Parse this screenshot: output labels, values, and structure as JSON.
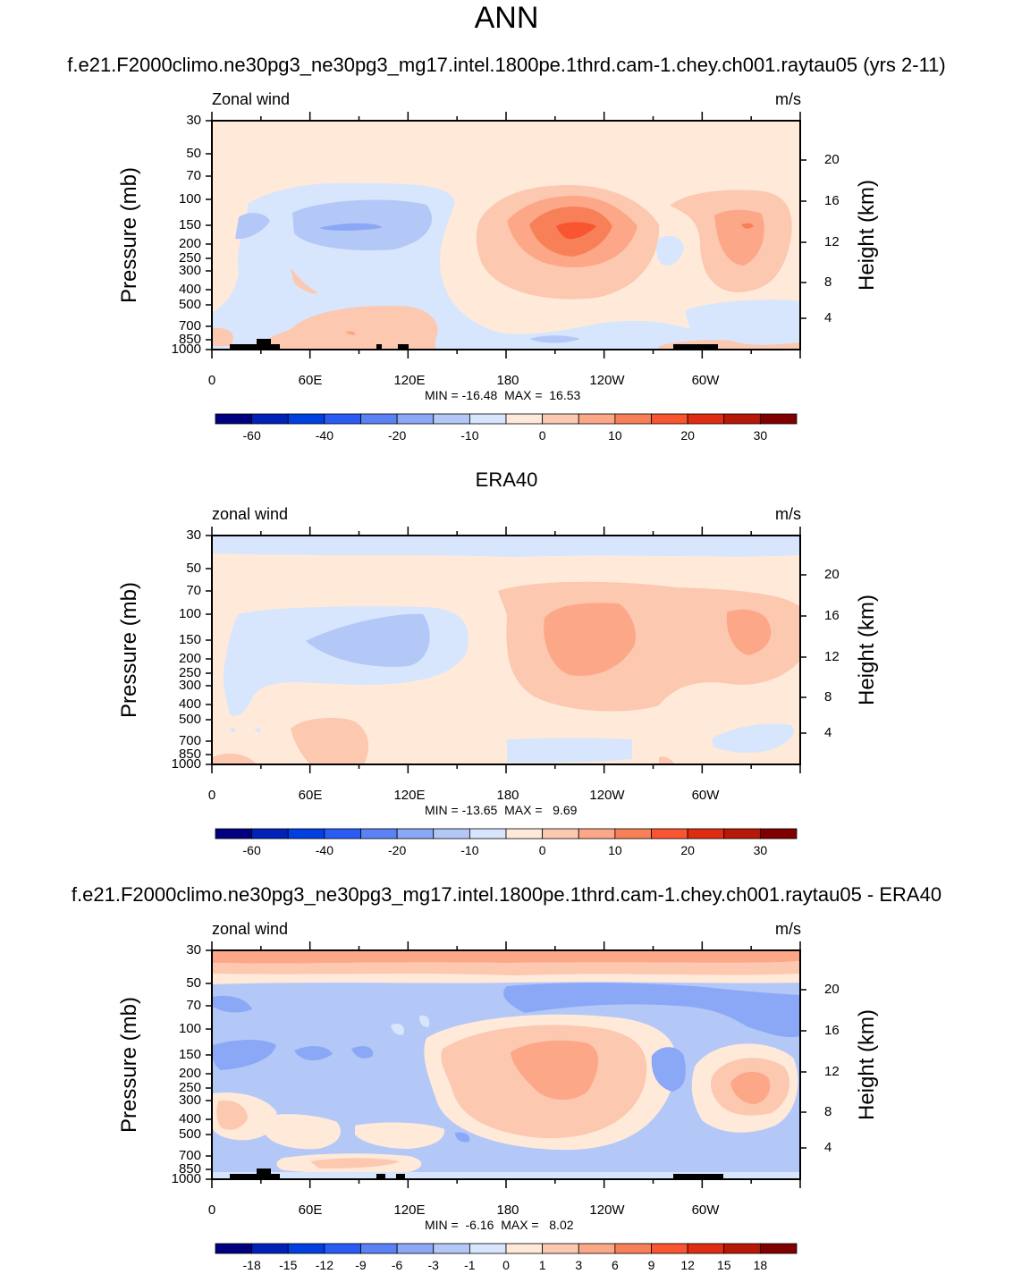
{
  "title": "ANN",
  "colors": {
    "scale": [
      "#000080",
      "#0022b8",
      "#0040e0",
      "#2a5cf5",
      "#5a82f5",
      "#8aa8f5",
      "#b4c8f8",
      "#d7e6fc",
      "#ffeada",
      "#fcc8b0",
      "#fca888",
      "#f88058",
      "#f85530",
      "#e02c10",
      "#b81808",
      "#800000"
    ],
    "land": "#000000"
  },
  "chart_data": [
    {
      "type": "heatmap",
      "title": "f.e21.F2000climo.ne30pg3_ne30pg3_mg17.intel.1800pe.1thrd.cam-1.chey.ch001.raytau05 (yrs 2-11)",
      "left_label": "Zonal wind",
      "right_label": "m/s",
      "ylabel": "Pressure (mb)",
      "ylabel_right": "Height (km)",
      "yticks": [
        "30",
        "50",
        "70",
        "100",
        "150",
        "200",
        "250",
        "300",
        "400",
        "500",
        "700",
        "850",
        "1000"
      ],
      "yticks_right": [
        "20",
        "16",
        "12",
        "8",
        "4"
      ],
      "xticks": [
        "0",
        "60E",
        "120E",
        "180",
        "120W",
        "60W"
      ],
      "min_max": "MIN = -16.48  MAX =  16.53",
      "colorbar_labels": [
        "-60",
        "-40",
        "-20",
        "-10",
        "0",
        "10",
        "20",
        "30"
      ],
      "summary": {
        "min": -16.48,
        "max": 16.53
      }
    },
    {
      "type": "heatmap",
      "title": "ERA40",
      "left_label": "zonal wind",
      "right_label": "m/s",
      "ylabel": "Pressure (mb)",
      "ylabel_right": "Height (km)",
      "yticks": [
        "30",
        "50",
        "70",
        "100",
        "150",
        "200",
        "250",
        "300",
        "400",
        "500",
        "700",
        "850",
        "1000"
      ],
      "yticks_right": [
        "20",
        "16",
        "12",
        "8",
        "4"
      ],
      "xticks": [
        "0",
        "60E",
        "120E",
        "180",
        "120W",
        "60W"
      ],
      "min_max": "MIN = -13.65  MAX =   9.69",
      "colorbar_labels": [
        "-60",
        "-40",
        "-20",
        "-10",
        "0",
        "10",
        "20",
        "30"
      ],
      "summary": {
        "min": -13.65,
        "max": 9.69
      }
    },
    {
      "type": "heatmap",
      "title": "f.e21.F2000climo.ne30pg3_ne30pg3_mg17.intel.1800pe.1thrd.cam-1.chey.ch001.raytau05 - ERA40",
      "left_label": "zonal wind",
      "right_label": "m/s",
      "ylabel": "Pressure (mb)",
      "ylabel_right": "Height (km)",
      "yticks": [
        "30",
        "50",
        "70",
        "100",
        "150",
        "200",
        "250",
        "300",
        "400",
        "500",
        "700",
        "850",
        "1000"
      ],
      "yticks_right": [
        "20",
        "16",
        "12",
        "8",
        "4"
      ],
      "xticks": [
        "0",
        "60E",
        "120E",
        "180",
        "120W",
        "60W"
      ],
      "min_max": "MIN =  -6.16  MAX =   8.02",
      "colorbar_labels": [
        "-18",
        "-15",
        "-12",
        "-9",
        "-6",
        "-3",
        "-1",
        "0",
        "1",
        "3",
        "6",
        "9",
        "12",
        "15",
        "18"
      ],
      "summary": {
        "min": -6.16,
        "max": 8.02
      }
    }
  ]
}
